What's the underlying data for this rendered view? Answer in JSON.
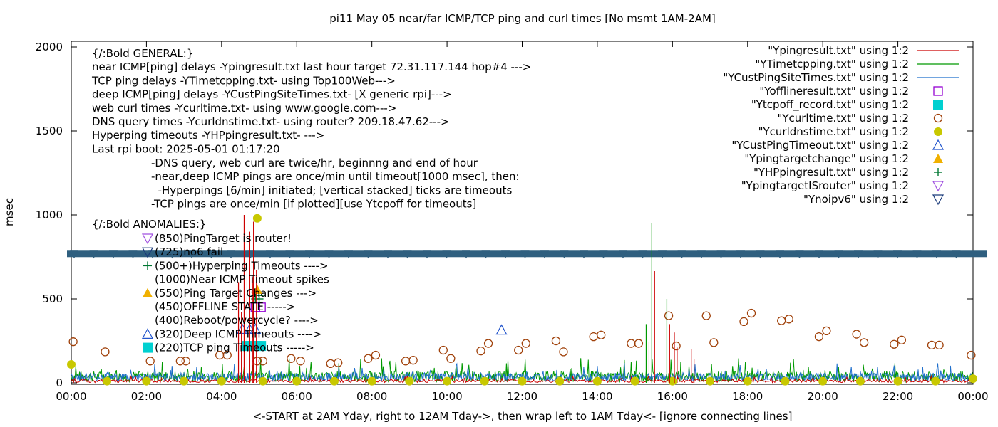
{
  "chart_data": {
    "type": "line",
    "title": "pi11 May 05  near/far ICMP/TCP ping and curl times [No msmt 1AM-2AM]",
    "xlabel": "<-START at 2AM Yday, right to 12AM Tday->, then wrap left to 1AM Tday<- [ignore connecting lines]",
    "ylabel": "msec",
    "xlim": [
      0,
      24
    ],
    "ylim": [
      0,
      2050
    ],
    "grid": false,
    "legend_position": "top-right",
    "x_tick_labels": [
      "00:00",
      "02:00",
      "04:00",
      "06:00",
      "08:00",
      "10:00",
      "12:00",
      "14:00",
      "16:00",
      "18:00",
      "20:00",
      "22:00",
      "00:00"
    ],
    "y_ticks": [
      0,
      500,
      1000,
      1500,
      2000
    ],
    "legend": [
      {
        "label": "\"Ypingresult.txt\" using 1:2",
        "marker": "line",
        "color": "#cc0000"
      },
      {
        "label": "\"YTimetcpping.txt\" using 1:2",
        "marker": "line",
        "color": "#009900"
      },
      {
        "label": "\"YCustPingSiteTimes.txt\" using 1:2",
        "marker": "line",
        "color": "#1f6fcc"
      },
      {
        "label": "\"Yofflineresult.txt\" using 1:2",
        "marker": "square-open",
        "color": "#9400d3"
      },
      {
        "label": "\"Ytcpoff_record.txt\" using 1:2",
        "marker": "square-filled",
        "color": "#00d0d0"
      },
      {
        "label": "\"Ycurltime.txt\" using 1:2",
        "marker": "circle-open",
        "color": "#a0410a"
      },
      {
        "label": "\"Ycurldnstime.txt\" using 1:2",
        "marker": "circle-filled",
        "color": "#c8c800"
      },
      {
        "label": "\"YCustPingTimeout.txt\" using 1:2",
        "marker": "triangle-open",
        "color": "#2255cc"
      },
      {
        "label": "\"Ypingtargetchange\" using 1:2",
        "marker": "triangle-filled",
        "color": "#f0b000"
      },
      {
        "label": "\"YHPpingresult.txt\" using 1:2",
        "marker": "plus",
        "color": "#007733"
      },
      {
        "label": "\"YpingtargetISrouter\" using 1:2",
        "marker": "triangle-down-open",
        "color": "#a050e0"
      },
      {
        "label": "\"Ynoipv6\" using 1:2",
        "marker": "triangle-down-open",
        "color": "#1a3a7a"
      }
    ],
    "info_lines": [
      "{/:Bold GENERAL:}",
      "near ICMP[ping] delays -Ypingresult.txt last hour target 72.31.117.144 hop#4 --->",
      "TCP ping delays -YTimetcpping.txt- using Top100Web--->",
      "deep ICMP[ping] delays -YCustPingSiteTimes.txt- [X generic rpi]--->",
      "web curl times -Ycurltime.txt- using www.google.com--->",
      "DNS query times -Ycurldnstime.txt- using router? 209.18.47.62--->",
      "Hyperping timeouts -YHPpingresult.txt- --->",
      "Last rpi boot: 2025-05-01 01:17:20"
    ],
    "info_notes": [
      "-DNS query, web curl are twice/hr, beginnng and end of hour",
      "-near,deep ICMP pings are once/min until timeout[1000 msec], then:",
      "  -Hyperpings [6/min] initiated; [vertical stacked] ticks are timeouts",
      "-TCP pings are once/min [if plotted][use Ytcpoff for timeouts]"
    ],
    "anomalies_title": "{/:Bold ANOMALIES:}",
    "anomalies": [
      {
        "text": "(850)PingTarget is router!",
        "marker": "triangle-down-open",
        "color": "#a050e0"
      },
      {
        "text": "(725)no6 fail",
        "marker": "triangle-down-open",
        "color": "#1a3a7a"
      },
      {
        "text": "(500+)Hyperping Timeouts ---->",
        "marker": "plus",
        "color": "#007733"
      },
      {
        "text": "(1000)Near ICMP Timeout spikes",
        "marker": "none",
        "color": ""
      },
      {
        "text": "(550)Ping Target Changes --->",
        "marker": "triangle-filled",
        "color": "#f0b000"
      },
      {
        "text": "(450)OFFLINE STATE ----->",
        "marker": "none",
        "color": ""
      },
      {
        "text": "(400)Reboot/powercycle? ---->",
        "marker": "none",
        "color": ""
      },
      {
        "text": "(320)Deep ICMP Timeouts ---->",
        "marker": "triangle-open",
        "color": "#2255cc"
      },
      {
        "text": "(220)TCP ping Timeouts ----->",
        "marker": "square-filled",
        "color": "#00d0d0"
      }
    ],
    "no6_band": {
      "y": 770,
      "color": "#2f5f7f"
    },
    "series": [
      {
        "name": "Ycurltime.txt",
        "type": "scatter",
        "points": [
          [
            0.05,
            245
          ],
          [
            0.9,
            185
          ],
          [
            2.1,
            130
          ],
          [
            2.9,
            130
          ],
          [
            3.05,
            130
          ],
          [
            3.95,
            165
          ],
          [
            4.15,
            165
          ],
          [
            4.95,
            130
          ],
          [
            5.1,
            130
          ],
          [
            5.85,
            145
          ],
          [
            6.1,
            130
          ],
          [
            6.9,
            115
          ],
          [
            7.1,
            120
          ],
          [
            7.9,
            145
          ],
          [
            8.1,
            165
          ],
          [
            8.9,
            130
          ],
          [
            9.1,
            135
          ],
          [
            9.9,
            195
          ],
          [
            10.1,
            145
          ],
          [
            10.9,
            190
          ],
          [
            11.1,
            235
          ],
          [
            11.9,
            195
          ],
          [
            12.1,
            235
          ],
          [
            12.9,
            250
          ],
          [
            13.1,
            185
          ],
          [
            13.9,
            275
          ],
          [
            14.1,
            285
          ],
          [
            14.9,
            235
          ],
          [
            15.1,
            235
          ],
          [
            15.9,
            400
          ],
          [
            16.1,
            220
          ],
          [
            16.9,
            400
          ],
          [
            17.1,
            240
          ],
          [
            17.9,
            365
          ],
          [
            18.1,
            415
          ],
          [
            18.9,
            370
          ],
          [
            19.1,
            380
          ],
          [
            19.9,
            275
          ],
          [
            20.1,
            310
          ],
          [
            20.9,
            290
          ],
          [
            21.1,
            240
          ],
          [
            21.9,
            230
          ],
          [
            22.1,
            255
          ],
          [
            22.9,
            225
          ],
          [
            23.1,
            225
          ],
          [
            23.95,
            165
          ]
        ]
      },
      {
        "name": "Ycurldnstime.txt",
        "type": "scatter",
        "points": [
          [
            0.0,
            110
          ],
          [
            0.95,
            10
          ],
          [
            2.0,
            10
          ],
          [
            3.0,
            10
          ],
          [
            4.0,
            10
          ],
          [
            4.95,
            980
          ],
          [
            5.1,
            10
          ],
          [
            6.0,
            10
          ],
          [
            7.0,
            10
          ],
          [
            8.0,
            10
          ],
          [
            9.0,
            10
          ],
          [
            10.0,
            10
          ],
          [
            11.0,
            10
          ],
          [
            12.0,
            10
          ],
          [
            13.0,
            10
          ],
          [
            14.0,
            10
          ],
          [
            15.0,
            10
          ],
          [
            16.0,
            10
          ],
          [
            17.0,
            10
          ],
          [
            18.0,
            10
          ],
          [
            19.0,
            10
          ],
          [
            20.0,
            10
          ],
          [
            21.0,
            10
          ],
          [
            22.0,
            10
          ],
          [
            23.0,
            10
          ],
          [
            24.0,
            25
          ]
        ]
      },
      {
        "name": "YCustPingTimeout.txt",
        "type": "scatter",
        "points": [
          [
            4.55,
            320
          ],
          [
            4.75,
            320
          ],
          [
            4.9,
            320
          ],
          [
            11.45,
            315
          ]
        ]
      },
      {
        "name": "Ytcpoff_record.txt",
        "type": "scatter",
        "points": [
          [
            4.65,
            220
          ],
          [
            4.8,
            220
          ],
          [
            4.95,
            220
          ],
          [
            5.05,
            220
          ]
        ]
      },
      {
        "name": "Yofflineresult.txt",
        "type": "scatter",
        "points": [
          [
            4.9,
            450
          ],
          [
            5.05,
            450
          ]
        ]
      },
      {
        "name": "YHPpingresult.txt",
        "type": "scatter",
        "points": [
          [
            4.9,
            500
          ],
          [
            4.9,
            520
          ],
          [
            4.9,
            540
          ],
          [
            5.0,
            500
          ],
          [
            5.0,
            520
          ]
        ]
      },
      {
        "name": "Ypingtargetchange",
        "type": "scatter",
        "points": [
          [
            4.95,
            555
          ]
        ]
      },
      {
        "name": "spikes",
        "type": "line",
        "points": [
          [
            4.45,
            600
          ],
          [
            4.6,
            1000
          ],
          [
            4.75,
            900
          ],
          [
            4.85,
            960
          ],
          [
            15.45,
            950
          ],
          [
            15.85,
            500
          ],
          [
            15.3,
            350
          ],
          [
            16.05,
            300
          ],
          [
            16.5,
            200
          ]
        ]
      }
    ]
  }
}
